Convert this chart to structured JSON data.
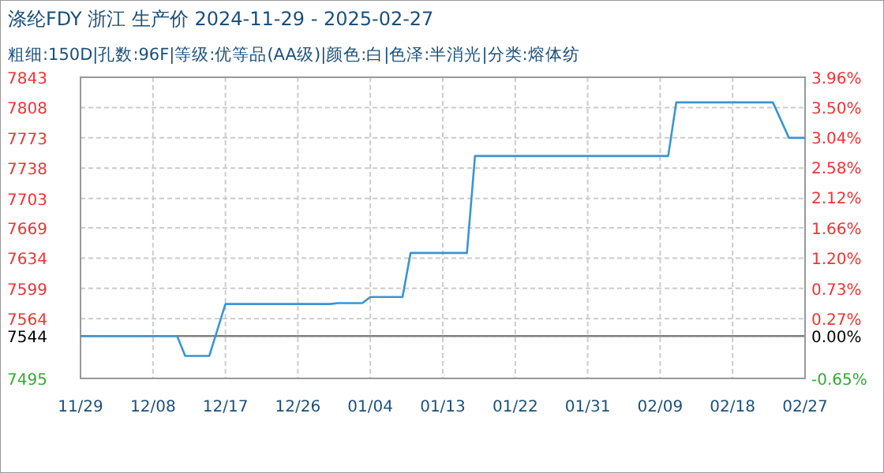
{
  "chart_data": {
    "type": "line",
    "title": "涤纶FDY 浙江 生产价 2024-11-29 - 2025-02-27",
    "subtitle": "粗细:150D|孔数:96F|等级:优等品(AA级)|颜色:白|色泽:半消光|分类:熔体纺",
    "x": [
      "2024-11-29",
      "2024-12-11",
      "2024-12-12",
      "2024-12-15",
      "2024-12-17",
      "2024-12-30",
      "2024-12-31",
      "2025-01-03",
      "2025-01-04",
      "2025-01-08",
      "2025-01-09",
      "2025-01-16",
      "2025-01-17",
      "2025-02-10",
      "2025-02-11",
      "2025-02-23",
      "2025-02-25",
      "2025-02-27"
    ],
    "series": [
      {
        "color": "#3a94d4",
        "values": [
          7544,
          7544,
          7521,
          7521,
          7581,
          7581,
          7582,
          7582,
          7589,
          7589,
          7640,
          7640,
          7752,
          7752,
          7814,
          7814,
          7773,
          7773
        ]
      }
    ],
    "xlim": [
      "2024-11-29",
      "2025-02-27"
    ],
    "xticks": [
      {
        "value": "2024-11-29",
        "label": "11/29"
      },
      {
        "value": "2024-12-08",
        "label": "12/08"
      },
      {
        "value": "2024-12-17",
        "label": "12/17"
      },
      {
        "value": "2024-12-26",
        "label": "12/26"
      },
      {
        "value": "2025-01-04",
        "label": "01/04"
      },
      {
        "value": "2025-01-13",
        "label": "01/13"
      },
      {
        "value": "2025-01-22",
        "label": "01/22"
      },
      {
        "value": "2025-01-31",
        "label": "01/31"
      },
      {
        "value": "2025-02-09",
        "label": "02/09"
      },
      {
        "value": "2025-02-18",
        "label": "02/18"
      },
      {
        "value": "2025-02-27",
        "label": "02/27"
      }
    ],
    "ylim": [
      7495,
      7843
    ],
    "yticks": [
      7495,
      7544,
      7564,
      7599,
      7634,
      7669,
      7703,
      7738,
      7773,
      7808,
      7843
    ],
    "y2lim": [
      -0.65,
      3.96
    ],
    "y2ticks": [
      {
        "value": -0.65,
        "label": "-0.65%"
      },
      {
        "value": 0,
        "label": "0.00%"
      },
      {
        "value": 0.27,
        "label": "0.27%"
      },
      {
        "value": 0.73,
        "label": "0.73%"
      },
      {
        "value": 1.2,
        "label": "1.20%"
      },
      {
        "value": 1.66,
        "label": "1.66%"
      },
      {
        "value": 2.12,
        "label": "2.12%"
      },
      {
        "value": 2.58,
        "label": "2.58%"
      },
      {
        "value": 3.04,
        "label": "3.04%"
      },
      {
        "value": 3.5,
        "label": "3.50%"
      },
      {
        "value": 3.96,
        "label": "3.96%"
      }
    ],
    "ref_lines": [
      {
        "axis": "y",
        "value": 7544,
        "color": "#808080"
      }
    ],
    "grid": true,
    "line_style": "solid",
    "marker": "none"
  }
}
